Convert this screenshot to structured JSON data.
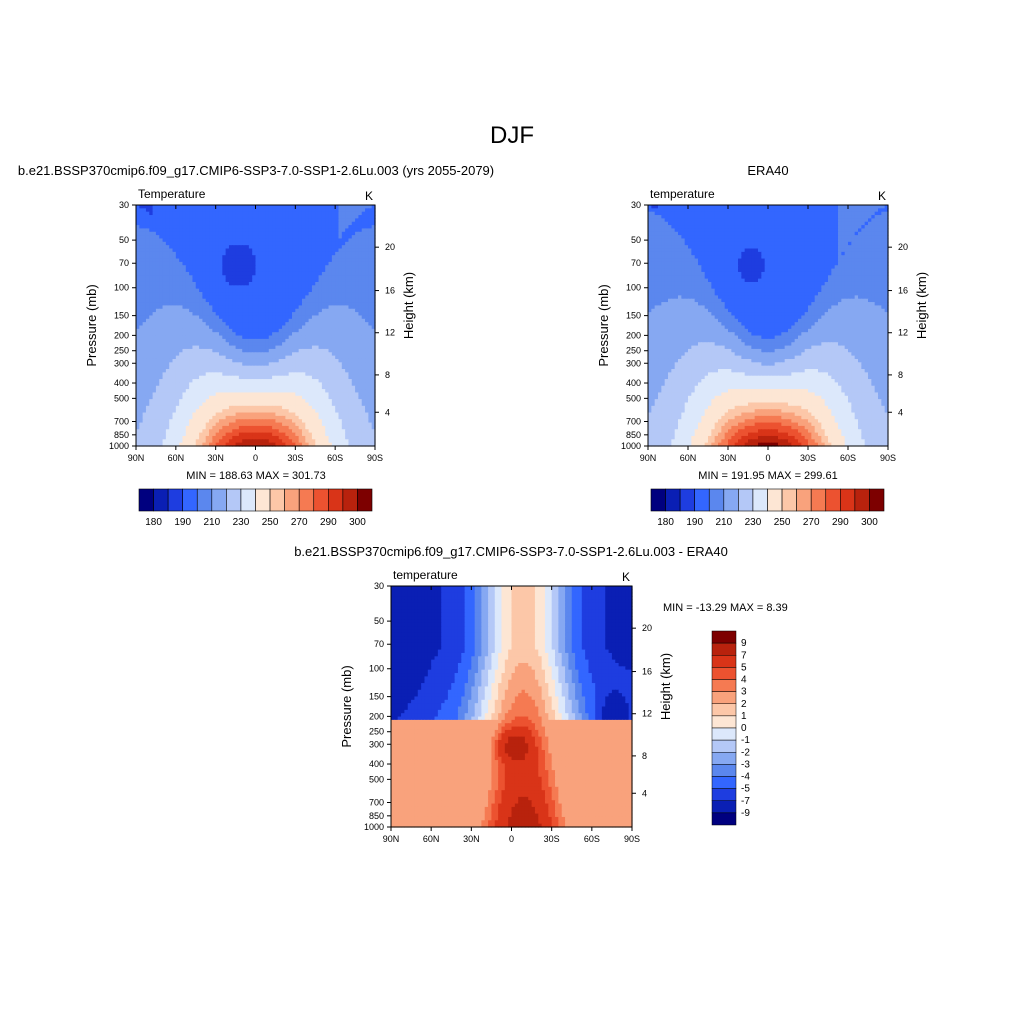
{
  "page_title": "DJF",
  "colors": {
    "abs_scale": [
      "#00007f",
      "#0a1fb4",
      "#1e3de0",
      "#3366ff",
      "#5b87ee",
      "#86a8f2",
      "#b4c8f7",
      "#dce8fb",
      "#fde6d4",
      "#fcc7a8",
      "#f9a27c",
      "#f57a52",
      "#ec5230",
      "#d93418",
      "#b8220d",
      "#7d0000"
    ],
    "diff_scale": [
      "#00007f",
      "#0a1fb4",
      "#1e3de0",
      "#3366ff",
      "#5b87ee",
      "#86a8f2",
      "#b4c8f7",
      "#dce8fb",
      "#fde6d4",
      "#fcc7a8",
      "#f9a27c",
      "#f57a52",
      "#ec5230",
      "#d93418",
      "#b8220d",
      "#7d0000"
    ]
  },
  "chart_data": [
    {
      "type": "heatmap",
      "title": "b.e21.BSSP370cmip6.f09_g17.CMIP6-SSP3-7.0-SSP1-2.6Lu.003 (yrs 2055-2079)",
      "left_string": "Temperature",
      "right_string": "K",
      "ylabel": "Pressure (mb)",
      "y2label": "Height (km)",
      "xticks": [
        "90N",
        "60N",
        "30N",
        "0",
        "30S",
        "60S",
        "90S"
      ],
      "yticks": [
        "30",
        "50",
        "70",
        "100",
        "150",
        "200",
        "250",
        "300",
        "400",
        "500",
        "700",
        "850",
        "1000"
      ],
      "y2ticks": [
        "20",
        "16",
        "12",
        "8",
        "4"
      ],
      "stats": "MIN = 188.63  MAX = 301.73",
      "colorbar_labels": [
        "180",
        "190",
        "210",
        "230",
        "250",
        "270",
        "290",
        "300"
      ],
      "min": 188.63,
      "max": 301.73
    },
    {
      "type": "heatmap",
      "title": "ERA40",
      "left_string": "temperature",
      "right_string": "K",
      "ylabel": "Pressure (mb)",
      "y2label": "Height (km)",
      "xticks": [
        "90N",
        "60N",
        "30N",
        "0",
        "30S",
        "60S",
        "90S"
      ],
      "yticks": [
        "30",
        "50",
        "70",
        "100",
        "150",
        "200",
        "250",
        "300",
        "400",
        "500",
        "700",
        "850",
        "1000"
      ],
      "y2ticks": [
        "20",
        "16",
        "12",
        "8",
        "4"
      ],
      "stats": "MIN = 191.95  MAX = 299.61",
      "colorbar_labels": [
        "180",
        "190",
        "210",
        "230",
        "250",
        "270",
        "290",
        "300"
      ],
      "min": 191.95,
      "max": 299.61
    },
    {
      "type": "heatmap",
      "title": "b.e21.BSSP370cmip6.f09_g17.CMIP6-SSP3-7.0-SSP1-2.6Lu.003 - ERA40",
      "left_string": "temperature",
      "right_string": "K",
      "ylabel": "Pressure (mb)",
      "y2label": "Height (km)",
      "xticks": [
        "90N",
        "60N",
        "30N",
        "0",
        "30S",
        "60S",
        "90S"
      ],
      "yticks": [
        "30",
        "50",
        "70",
        "100",
        "150",
        "200",
        "250",
        "300",
        "400",
        "500",
        "700",
        "850",
        "1000"
      ],
      "y2ticks": [
        "20",
        "16",
        "12",
        "8",
        "4"
      ],
      "stats": "MIN = -13.29  MAX =   8.39",
      "colorbar_labels": [
        "9",
        "7",
        "5",
        "4",
        "3",
        "2",
        "1",
        "0",
        "-1",
        "-2",
        "-3",
        "-4",
        "-5",
        "-7",
        "-9"
      ],
      "min": -13.29,
      "max": 8.39
    }
  ]
}
